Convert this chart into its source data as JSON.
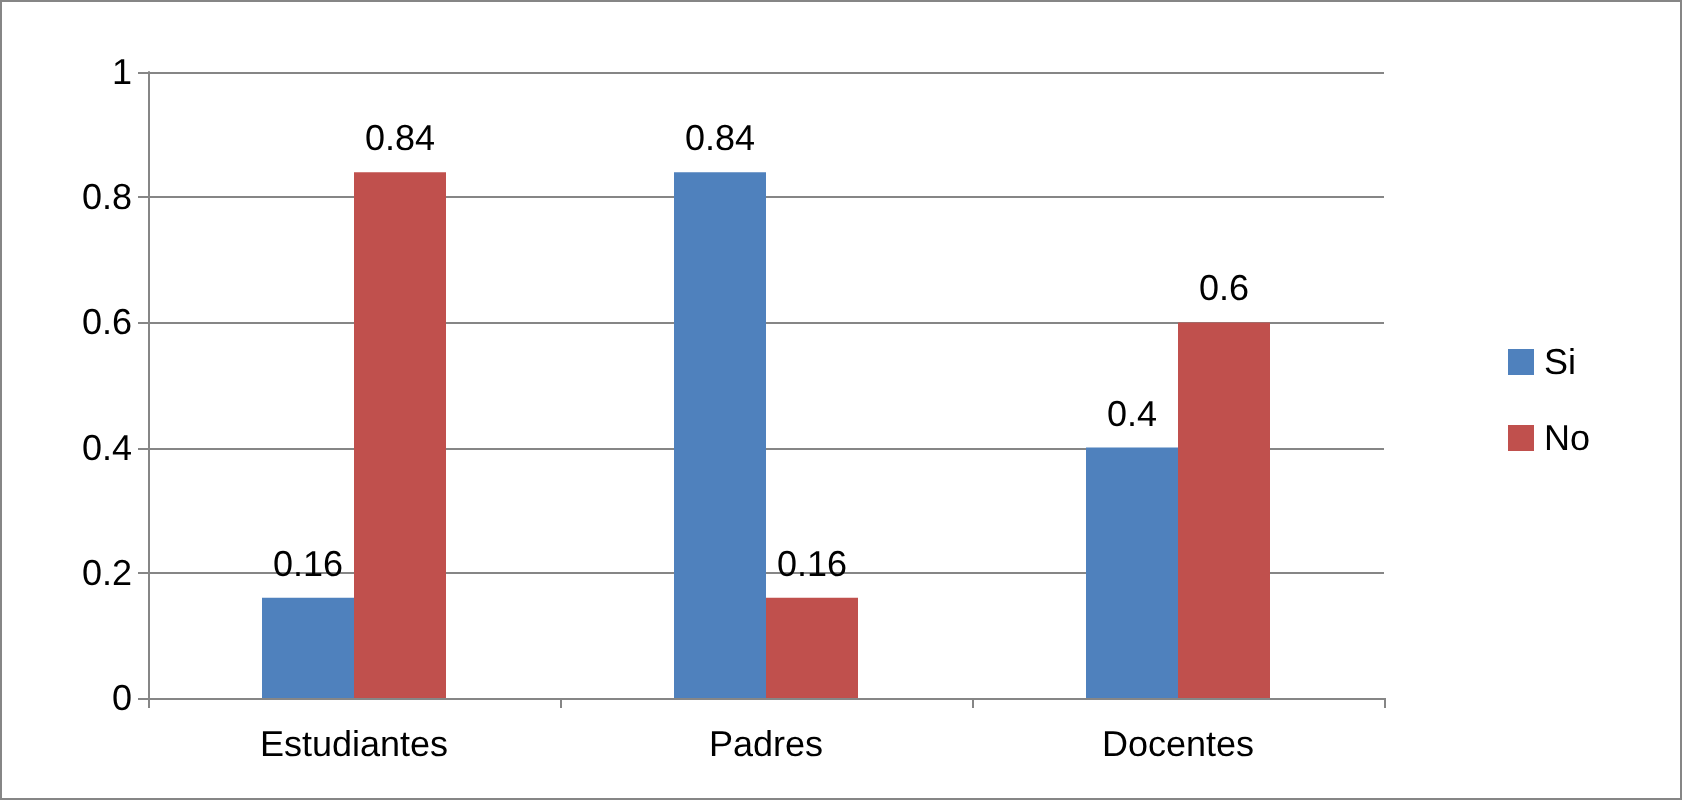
{
  "chart_data": {
    "type": "bar",
    "categories": [
      "Estudiantes",
      "Padres",
      "Docentes"
    ],
    "series": [
      {
        "name": "Si",
        "color": "#4f81bd",
        "values": [
          0.16,
          0.84,
          0.4
        ]
      },
      {
        "name": "No",
        "color": "#c0504d",
        "values": [
          0.84,
          0.16,
          0.6
        ]
      }
    ],
    "ylim": [
      0,
      1
    ],
    "yticks": [
      0,
      0.2,
      0.4,
      0.6,
      0.8,
      1
    ],
    "grid": "y",
    "legend": "right",
    "data_labels": true
  }
}
